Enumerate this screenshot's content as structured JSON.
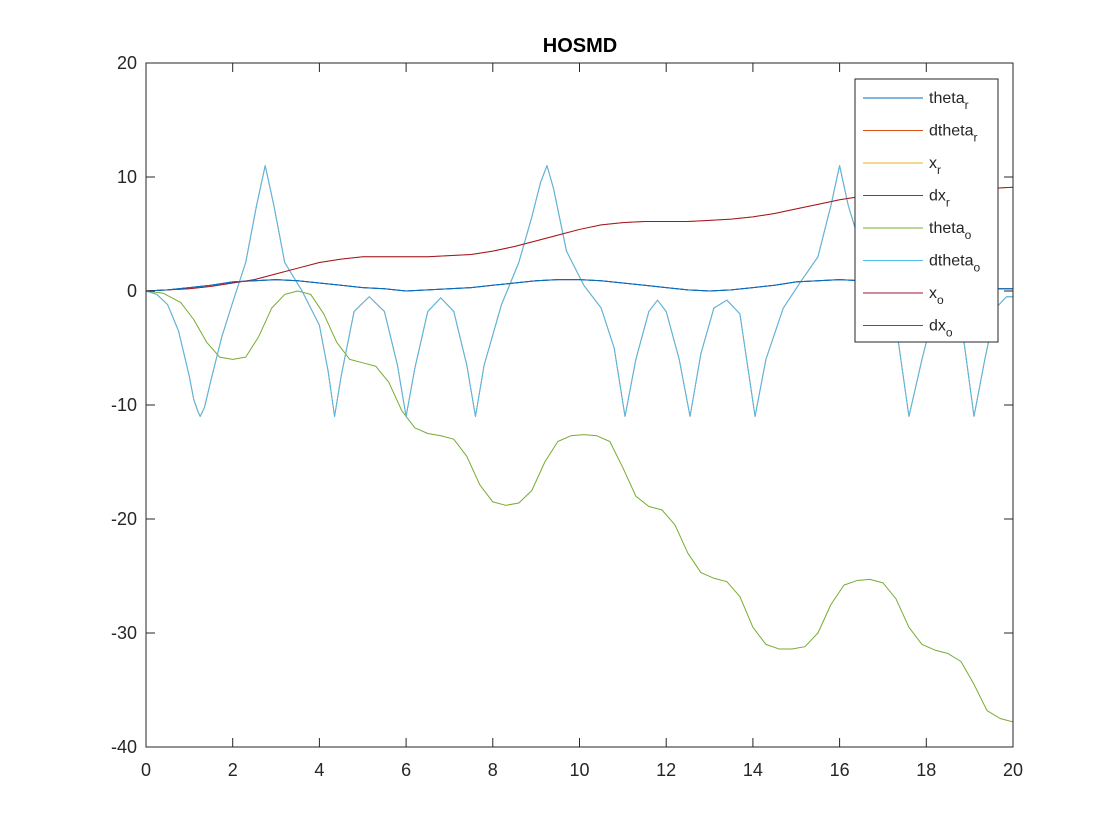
{
  "chart_data": {
    "type": "line",
    "title": "HOSMD",
    "xlabel": "",
    "ylabel": "",
    "xlim": [
      0,
      20
    ],
    "ylim": [
      -40,
      20
    ],
    "xticks": [
      0,
      2,
      4,
      6,
      8,
      10,
      12,
      14,
      16,
      18,
      20
    ],
    "yticks": [
      -40,
      -30,
      -20,
      -10,
      0,
      10,
      20
    ],
    "grid": false,
    "legend_position": "top-right",
    "series": [
      {
        "name": "theta_r",
        "label_main": "theta",
        "label_sub": "r",
        "color": "#0072BD",
        "x": [
          0,
          0.5,
          1,
          1.5,
          2,
          2.5,
          3,
          3.5,
          4,
          4.5,
          5,
          5.5,
          6,
          6.5,
          7,
          7.5,
          8,
          8.5,
          9,
          9.5,
          10,
          10.5,
          11,
          11.5,
          12,
          12.5,
          13,
          13.5,
          14,
          14.5,
          15,
          15.5,
          16,
          16.5,
          17,
          17.5,
          18,
          18.5,
          19,
          19.5,
          20
        ],
        "y": [
          0,
          0.1,
          0.3,
          0.5,
          0.8,
          0.9,
          1.0,
          0.9,
          0.7,
          0.5,
          0.3,
          0.2,
          0.0,
          0.1,
          0.2,
          0.3,
          0.5,
          0.7,
          0.9,
          1.0,
          1.0,
          0.9,
          0.7,
          0.5,
          0.3,
          0.1,
          0.0,
          0.1,
          0.3,
          0.5,
          0.8,
          0.9,
          1.0,
          0.9,
          0.8,
          0.6,
          0.4,
          0.3,
          0.2,
          0.2,
          0.2
        ]
      },
      {
        "name": "dtheta_r",
        "label_main": "dtheta",
        "label_sub": "r",
        "color": "#D95319",
        "x": [
          0,
          0.25,
          0.5,
          0.75,
          1.0,
          1.1,
          1.2,
          1.25,
          1.35,
          1.5,
          1.75,
          2.0,
          2.3,
          2.55,
          2.75,
          2.95,
          3.2,
          3.6,
          4.0,
          4.2,
          4.35,
          4.5,
          4.8,
          5.15,
          5.5,
          5.8,
          6.0,
          6.2,
          6.5,
          6.8,
          7.1,
          7.4,
          7.6,
          7.8,
          8.2,
          8.6,
          8.9,
          9.1,
          9.25,
          9.4,
          9.7,
          10.1,
          10.5,
          10.8,
          11.05,
          11.3,
          11.6,
          11.8,
          12.0,
          12.3,
          12.55,
          12.8,
          13.1,
          13.4,
          13.7,
          14.05,
          14.3,
          14.7,
          15.1,
          15.5,
          15.8,
          16.0,
          16.2,
          16.6,
          17.0,
          17.3,
          17.6,
          17.9,
          18.2,
          18.5,
          18.8,
          19.1,
          19.35,
          19.6,
          19.85,
          20.0
        ],
        "y": [
          0,
          -0.3,
          -1.2,
          -3.5,
          -7.5,
          -9.5,
          -10.6,
          -11,
          -10.2,
          -7.8,
          -4,
          -1,
          2.5,
          7.5,
          11,
          7.5,
          2.5,
          0,
          -3,
          -7,
          -11,
          -7.5,
          -1.8,
          -0.5,
          -1.8,
          -6.5,
          -11,
          -6.8,
          -1.8,
          -0.6,
          -1.8,
          -6.5,
          -11,
          -6.5,
          -1.2,
          2.5,
          6.5,
          9.5,
          11,
          9,
          3.5,
          0.5,
          -1.5,
          -5,
          -11,
          -6,
          -1.8,
          -0.8,
          -1.8,
          -6,
          -11,
          -5.5,
          -1.5,
          -0.8,
          -2,
          -11,
          -6,
          -1.5,
          0.8,
          3,
          7.5,
          11,
          7.5,
          2.5,
          0.5,
          -3,
          -11,
          -6,
          -1.5,
          -0.8,
          -2.5,
          -11,
          -6,
          -1.5,
          -0.5,
          -0.5
        ]
      },
      {
        "name": "x_r",
        "label_main": "x",
        "label_sub": "r",
        "color": "#EDB120",
        "x": [
          0,
          0.5,
          1,
          1.5,
          2,
          2.5,
          3,
          3.5,
          4,
          4.5,
          5,
          5.5,
          6,
          6.5,
          7,
          7.5,
          8,
          8.5,
          9,
          9.5,
          10,
          10.5,
          11,
          11.5,
          12,
          12.5,
          13,
          13.5,
          14,
          14.5,
          15,
          15.5,
          16,
          16.5,
          17,
          17.5,
          18,
          18.5,
          19,
          19.5,
          20
        ],
        "y": [
          0,
          0.1,
          0.2,
          0.4,
          0.7,
          1.0,
          1.5,
          2.0,
          2.5,
          2.8,
          3.0,
          3.0,
          3.0,
          3.0,
          3.1,
          3.2,
          3.5,
          3.9,
          4.4,
          4.9,
          5.4,
          5.8,
          6.0,
          6.1,
          6.1,
          6.1,
          6.2,
          6.3,
          6.5,
          6.8,
          7.2,
          7.6,
          8.0,
          8.3,
          8.5,
          8.6,
          8.7,
          8.8,
          8.9,
          9.0,
          9.1
        ]
      },
      {
        "name": "dx_r",
        "label_main": "dx",
        "label_sub": "r",
        "color": "#7E2F8E",
        "x": [
          0,
          0.5,
          1,
          1.5,
          2,
          2.5,
          3,
          3.5,
          4,
          4.5,
          5,
          5.5,
          6,
          6.5,
          7,
          7.5,
          8,
          8.5,
          9,
          9.5,
          10,
          10.5,
          11,
          11.5,
          12,
          12.5,
          13,
          13.5,
          14,
          14.5,
          15,
          15.5,
          16,
          16.5,
          17,
          17.5,
          18,
          18.5,
          19,
          19.5,
          20
        ],
        "y": [
          0,
          0.1,
          0.3,
          0.5,
          0.8,
          0.9,
          1.0,
          0.9,
          0.7,
          0.5,
          0.3,
          0.2,
          0.0,
          0.1,
          0.2,
          0.3,
          0.5,
          0.7,
          0.9,
          1.0,
          1.0,
          0.9,
          0.7,
          0.5,
          0.3,
          0.1,
          0.0,
          0.1,
          0.3,
          0.5,
          0.8,
          0.9,
          1.0,
          0.9,
          0.8,
          0.6,
          0.4,
          0.3,
          0.2,
          0.2,
          0.2
        ]
      },
      {
        "name": "theta_o",
        "label_main": "theta",
        "label_sub": "o",
        "color": "#77AC30",
        "x": [
          0,
          0.4,
          0.8,
          1.1,
          1.4,
          1.7,
          2.0,
          2.3,
          2.6,
          2.9,
          3.2,
          3.5,
          3.8,
          4.1,
          4.4,
          4.7,
          5.0,
          5.3,
          5.6,
          5.9,
          6.2,
          6.5,
          6.8,
          7.1,
          7.4,
          7.7,
          8.0,
          8.3,
          8.6,
          8.9,
          9.2,
          9.5,
          9.8,
          10.1,
          10.4,
          10.7,
          11.0,
          11.3,
          11.6,
          11.9,
          12.2,
          12.5,
          12.8,
          13.1,
          13.4,
          13.7,
          14.0,
          14.3,
          14.6,
          14.9,
          15.2,
          15.5,
          15.8,
          16.1,
          16.4,
          16.7,
          17.0,
          17.3,
          17.6,
          17.9,
          18.2,
          18.5,
          18.8,
          19.1,
          19.4,
          19.7,
          20.0
        ],
        "y": [
          0,
          -0.2,
          -1.0,
          -2.5,
          -4.5,
          -5.8,
          -6.0,
          -5.8,
          -4.0,
          -1.5,
          -0.3,
          0.0,
          -0.3,
          -2.0,
          -4.5,
          -6.0,
          -6.3,
          -6.6,
          -8.0,
          -10.5,
          -12.0,
          -12.5,
          -12.7,
          -13.0,
          -14.5,
          -17.0,
          -18.5,
          -18.8,
          -18.6,
          -17.5,
          -15.0,
          -13.2,
          -12.7,
          -12.6,
          -12.7,
          -13.2,
          -15.5,
          -18.0,
          -18.9,
          -19.2,
          -20.5,
          -23.0,
          -24.7,
          -25.2,
          -25.5,
          -26.8,
          -29.5,
          -31.0,
          -31.4,
          -31.4,
          -31.2,
          -30.0,
          -27.5,
          -25.8,
          -25.4,
          -25.3,
          -25.6,
          -27.0,
          -29.5,
          -31.0,
          -31.5,
          -31.8,
          -32.5,
          -34.5,
          -36.8,
          -37.5,
          -37.8
        ]
      },
      {
        "name": "dtheta_o",
        "label_main": "dtheta",
        "label_sub": "o",
        "color": "#4DBEEE",
        "x": [
          0,
          0.25,
          0.5,
          0.75,
          1.0,
          1.1,
          1.2,
          1.25,
          1.35,
          1.5,
          1.75,
          2.0,
          2.3,
          2.55,
          2.75,
          2.95,
          3.2,
          3.6,
          4.0,
          4.2,
          4.35,
          4.5,
          4.8,
          5.15,
          5.5,
          5.8,
          6.0,
          6.2,
          6.5,
          6.8,
          7.1,
          7.4,
          7.6,
          7.8,
          8.2,
          8.6,
          8.9,
          9.1,
          9.25,
          9.4,
          9.7,
          10.1,
          10.5,
          10.8,
          11.05,
          11.3,
          11.6,
          11.8,
          12.0,
          12.3,
          12.55,
          12.8,
          13.1,
          13.4,
          13.7,
          14.05,
          14.3,
          14.7,
          15.1,
          15.5,
          15.8,
          16.0,
          16.2,
          16.6,
          17.0,
          17.3,
          17.6,
          17.9,
          18.2,
          18.5,
          18.8,
          19.1,
          19.35,
          19.6,
          19.85,
          20.0
        ],
        "y": [
          0,
          -0.3,
          -1.2,
          -3.5,
          -7.5,
          -9.5,
          -10.6,
          -11,
          -10.2,
          -7.8,
          -4,
          -1,
          2.5,
          7.5,
          11,
          7.5,
          2.5,
          0,
          -3,
          -7,
          -11,
          -7.5,
          -1.8,
          -0.5,
          -1.8,
          -6.5,
          -11,
          -6.8,
          -1.8,
          -0.6,
          -1.8,
          -6.5,
          -11,
          -6.5,
          -1.2,
          2.5,
          6.5,
          9.5,
          11,
          9,
          3.5,
          0.5,
          -1.5,
          -5,
          -11,
          -6,
          -1.8,
          -0.8,
          -1.8,
          -6,
          -11,
          -5.5,
          -1.5,
          -0.8,
          -2,
          -11,
          -6,
          -1.5,
          0.8,
          3,
          7.5,
          11,
          7.5,
          2.5,
          0.5,
          -3,
          -11,
          -6,
          -1.5,
          -0.8,
          -2.5,
          -11,
          -6,
          -1.5,
          -0.5,
          -0.5
        ]
      },
      {
        "name": "x_o",
        "label_main": "x",
        "label_sub": "o",
        "color": "#A2142F",
        "x": [
          0,
          0.5,
          1,
          1.5,
          2,
          2.5,
          3,
          3.5,
          4,
          4.5,
          5,
          5.5,
          6,
          6.5,
          7,
          7.5,
          8,
          8.5,
          9,
          9.5,
          10,
          10.5,
          11,
          11.5,
          12,
          12.5,
          13,
          13.5,
          14,
          14.5,
          15,
          15.5,
          16,
          16.5,
          17,
          17.5,
          18,
          18.5,
          19,
          19.5,
          20
        ],
        "y": [
          0,
          0.1,
          0.2,
          0.4,
          0.7,
          1.0,
          1.5,
          2.0,
          2.5,
          2.8,
          3.0,
          3.0,
          3.0,
          3.0,
          3.1,
          3.2,
          3.5,
          3.9,
          4.4,
          4.9,
          5.4,
          5.8,
          6.0,
          6.1,
          6.1,
          6.1,
          6.2,
          6.3,
          6.5,
          6.8,
          7.2,
          7.6,
          8.0,
          8.3,
          8.5,
          8.6,
          8.7,
          8.8,
          8.9,
          9.0,
          9.1
        ]
      },
      {
        "name": "dx_o",
        "label_main": "dx",
        "label_sub": "o",
        "color": "#0072BD",
        "x": [
          0,
          0.5,
          1,
          1.5,
          2,
          2.5,
          3,
          3.5,
          4,
          4.5,
          5,
          5.5,
          6,
          6.5,
          7,
          7.5,
          8,
          8.5,
          9,
          9.5,
          10,
          10.5,
          11,
          11.5,
          12,
          12.5,
          13,
          13.5,
          14,
          14.5,
          15,
          15.5,
          16,
          16.5,
          17,
          17.5,
          18,
          18.5,
          19,
          19.5,
          20
        ],
        "y": [
          0,
          0.1,
          0.3,
          0.5,
          0.8,
          0.9,
          1.0,
          0.9,
          0.7,
          0.5,
          0.3,
          0.2,
          0.0,
          0.1,
          0.2,
          0.3,
          0.5,
          0.7,
          0.9,
          1.0,
          1.0,
          0.9,
          0.7,
          0.5,
          0.3,
          0.1,
          0.0,
          0.1,
          0.3,
          0.5,
          0.8,
          0.9,
          1.0,
          0.9,
          0.8,
          0.6,
          0.4,
          0.3,
          0.2,
          0.2,
          0.2
        ]
      }
    ]
  }
}
